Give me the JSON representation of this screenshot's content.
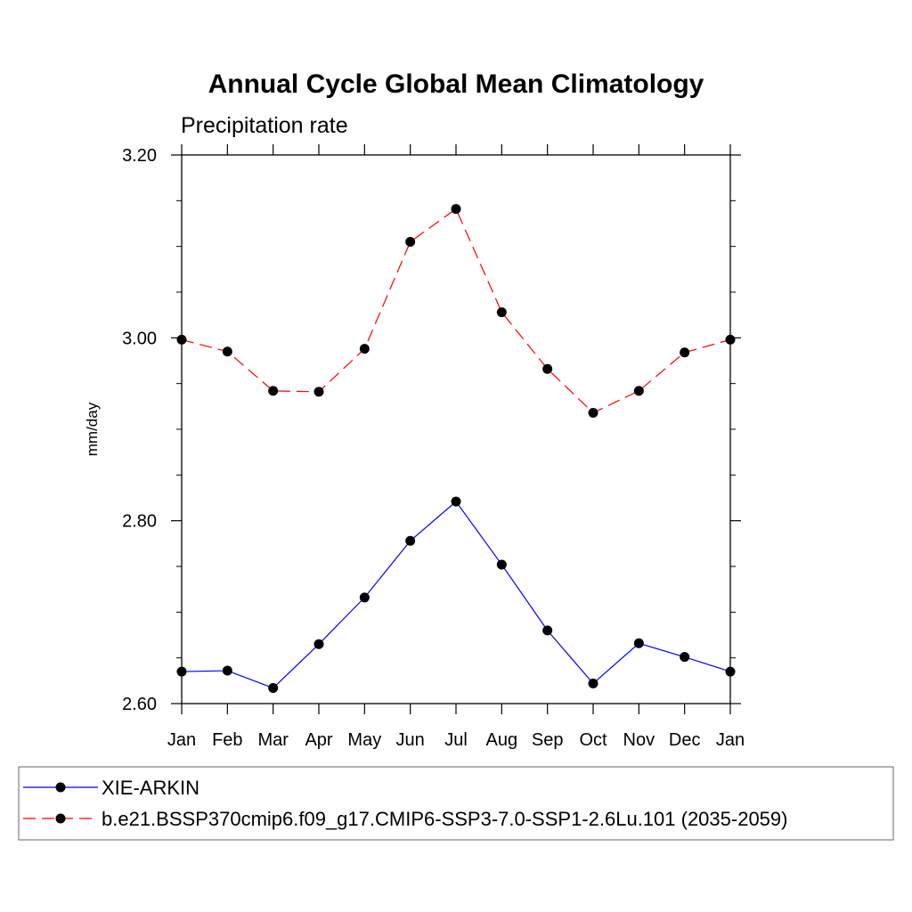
{
  "chart_data": {
    "type": "line",
    "title": "Annual Cycle Global Mean Climatology",
    "subtitle": "Precipitation rate",
    "xlabel": "",
    "ylabel": "mm/day",
    "categories": [
      "Jan",
      "Feb",
      "Mar",
      "Apr",
      "May",
      "Jun",
      "Jul",
      "Aug",
      "Sep",
      "Oct",
      "Nov",
      "Dec",
      "Jan"
    ],
    "ylim": [
      2.6,
      3.2
    ],
    "yticks": [
      "2.60",
      "2.80",
      "3.00",
      "3.20"
    ],
    "grid": false,
    "legend_position": "bottom",
    "series": [
      {
        "name": "XIE-ARKIN",
        "color": "#0000ff",
        "line_style": "solid",
        "marker": "filled-circle",
        "values": [
          2.635,
          2.636,
          2.617,
          2.665,
          2.716,
          2.778,
          2.821,
          2.752,
          2.68,
          2.622,
          2.666,
          2.651,
          2.635
        ]
      },
      {
        "name": "b.e21.BSSP370cmip6.f09_g17.CMIP6-SSP3-7.0-SSP1-2.6Lu.101 (2035-2059)",
        "color": "#ff0000",
        "line_style": "dashed",
        "marker": "filled-circle",
        "values": [
          2.998,
          2.985,
          2.942,
          2.941,
          2.988,
          3.105,
          3.141,
          3.028,
          2.966,
          2.918,
          2.942,
          2.984,
          2.998
        ]
      }
    ]
  }
}
